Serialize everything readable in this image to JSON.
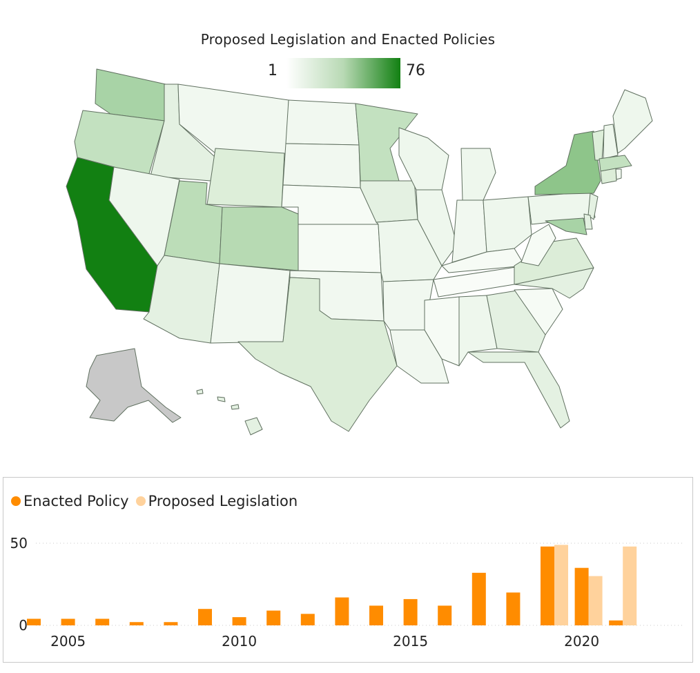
{
  "map": {
    "title": "Proposed Legislation and Enacted Policies",
    "scale": {
      "min_label": "1",
      "max_label": "76",
      "min_color": "#ffffff",
      "max_color": "#128012"
    },
    "no_data_color": "#c8c8c8",
    "border_color": "#5f6f5f"
  },
  "chart_data": {
    "type": "bar",
    "legend": [
      {
        "name": "Enacted Policy",
        "color": "#ff8c00"
      },
      {
        "name": "Proposed Legislation",
        "color": "#ffd29c"
      }
    ],
    "x": [
      2004,
      2005,
      2006,
      2007,
      2008,
      2009,
      2010,
      2011,
      2012,
      2013,
      2014,
      2015,
      2016,
      2017,
      2018,
      2019,
      2020,
      2021
    ],
    "series": [
      {
        "name": "Enacted Policy",
        "values": [
          4,
          4,
          4,
          2,
          2,
          10,
          5,
          9,
          7,
          17,
          12,
          16,
          12,
          32,
          20,
          48,
          35,
          3
        ]
      },
      {
        "name": "Proposed Legislation",
        "values": [
          0,
          0,
          0,
          0,
          0,
          0,
          0,
          0,
          0,
          0,
          0,
          0,
          0,
          0,
          0,
          49,
          30,
          48
        ]
      }
    ],
    "x_ticks": [
      "2005",
      "2010",
      "2015",
      "2020"
    ],
    "y_ticks": [
      "0",
      "50"
    ],
    "ylim": [
      0,
      50
    ],
    "legend_position": "top-left",
    "grid": true
  }
}
